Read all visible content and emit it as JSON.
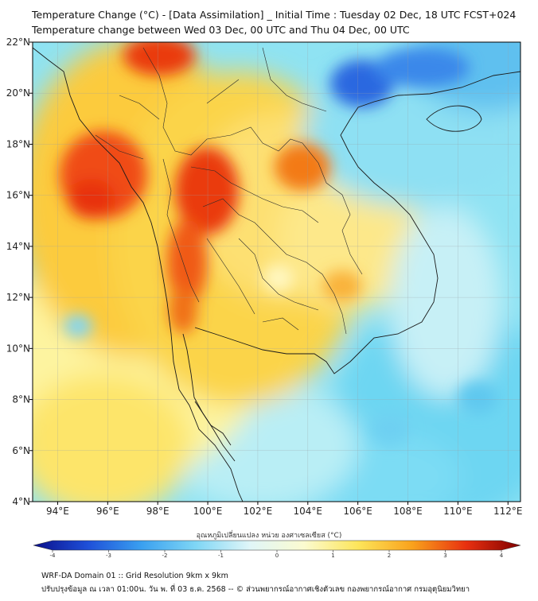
{
  "title": {
    "line1": "Temperature Change (°C) - [Data Assimilation] _ Initial Time : Tuesday 02 Dec, 18 UTC FCST+024",
    "line2": "Temperature change between Wed 03 Dec, 00 UTC and Thu 04 Dec, 00 UTC"
  },
  "map": {
    "lat_labels": [
      "22°N",
      "20°N",
      "18°N",
      "16°N",
      "14°N",
      "12°N",
      "10°N",
      "8°N",
      "6°N",
      "4°N"
    ],
    "lon_labels": [
      "94°E",
      "96°E",
      "98°E",
      "100°E",
      "102°E",
      "104°E",
      "106°E",
      "108°E",
      "110°E",
      "112°E"
    ],
    "lat_values": [
      22,
      20,
      18,
      16,
      14,
      12,
      10,
      8,
      6,
      4
    ],
    "lon_values": [
      94,
      96,
      98,
      100,
      102,
      104,
      106,
      108,
      110,
      112
    ],
    "extent": {
      "lon_min": 93,
      "lon_max": 112.5,
      "lat_min": 4,
      "lat_max": 22
    }
  },
  "colorbar": {
    "title": "อุณหภูมิเปลี่ยนแปลง หน่วย องศาเซลเซียส (°C)",
    "tick_labels": [
      "-4",
      "-3",
      "-2",
      "-1",
      "0",
      "1",
      "2",
      "3",
      "4"
    ],
    "min": -4,
    "max": 4,
    "colors": [
      "#0a0f8a",
      "#1e4fd8",
      "#3aa0f0",
      "#7fd6f5",
      "#e0f6f8",
      "#fbfbd0",
      "#fde55a",
      "#f9a21c",
      "#e83010",
      "#800000"
    ]
  },
  "footer": {
    "line1": "WRF-DA Domain 01 :: Grid Resolution 9km x 9km",
    "line2": "ปรับปรุงข้อมูล ณ เวลา 01:00น. วัน พ. ที่ 03 ธ.ค. 2568 -- © ส่วนพยากรณ์อากาศเชิงตัวเลข กองพยากรณ์อากาศ กรมอุตุนิยมวิทยา"
  }
}
